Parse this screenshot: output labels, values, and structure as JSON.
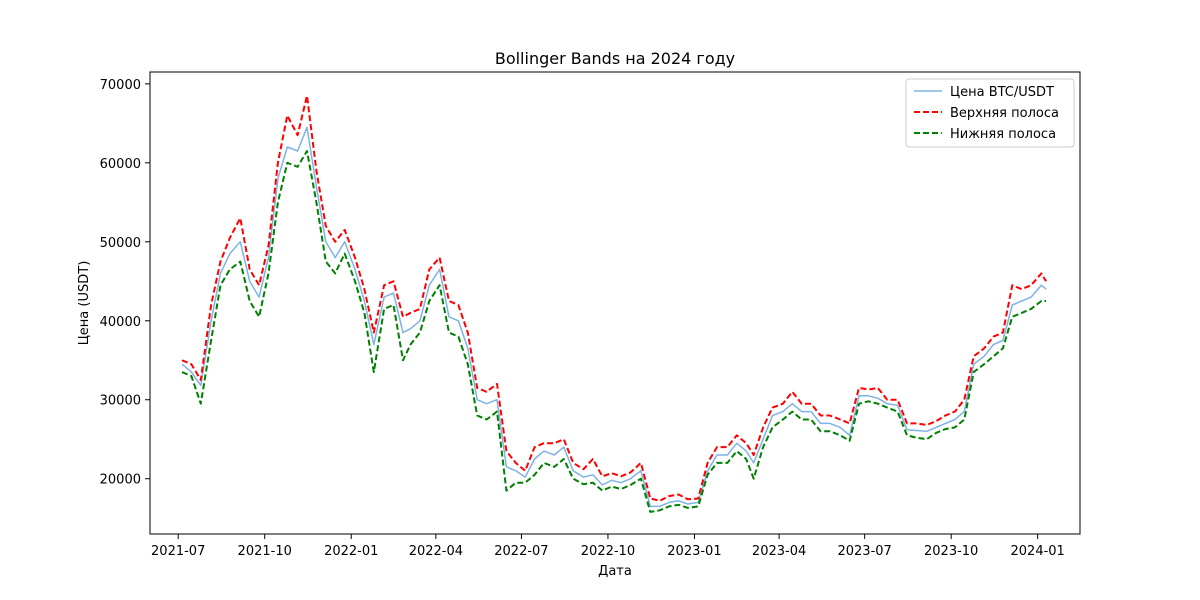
{
  "chart_data": {
    "type": "line",
    "title": "Bollinger Bands на 2024 году",
    "xlabel": "Дата",
    "ylabel": "Цена (USDT)",
    "x_ticks": [
      "2021-07-01",
      "2021-10-01",
      "2022-01-01",
      "2022-04-01",
      "2022-07-01",
      "2022-10-01",
      "2023-01-01",
      "2023-04-01",
      "2023-07-01",
      "2023-10-01",
      "2024-01-01"
    ],
    "x_tick_labels": [
      "2021-07",
      "2021-10",
      "2022-01",
      "2022-04",
      "2022-07",
      "2022-10",
      "2023-01",
      "2023-04",
      "2023-07",
      "2023-10",
      "2024-01"
    ],
    "xlim": [
      "2021-06-01",
      "2024-02-15"
    ],
    "y_ticks": [
      20000,
      30000,
      40000,
      50000,
      60000,
      70000
    ],
    "y_tick_labels": [
      "20000",
      "30000",
      "40000",
      "50000",
      "60000",
      "70000"
    ],
    "ylim": [
      13000,
      71500
    ],
    "grid": false,
    "legend_position": "top-right",
    "colors": {
      "price": "#7fb2e5",
      "upper": "#ff0000",
      "lower": "#008000"
    },
    "dates": [
      "2021-07-05",
      "2021-07-15",
      "2021-07-25",
      "2021-08-05",
      "2021-08-15",
      "2021-08-25",
      "2021-09-05",
      "2021-09-15",
      "2021-09-25",
      "2021-10-05",
      "2021-10-15",
      "2021-10-25",
      "2021-11-05",
      "2021-11-15",
      "2021-11-25",
      "2021-12-05",
      "2021-12-15",
      "2021-12-25",
      "2022-01-05",
      "2022-01-15",
      "2022-01-25",
      "2022-02-05",
      "2022-02-15",
      "2022-02-25",
      "2022-03-05",
      "2022-03-15",
      "2022-03-25",
      "2022-04-05",
      "2022-04-15",
      "2022-04-25",
      "2022-05-05",
      "2022-05-15",
      "2022-05-25",
      "2022-06-05",
      "2022-06-15",
      "2022-06-25",
      "2022-07-05",
      "2022-07-15",
      "2022-07-25",
      "2022-08-05",
      "2022-08-15",
      "2022-08-25",
      "2022-09-05",
      "2022-09-15",
      "2022-09-25",
      "2022-10-05",
      "2022-10-15",
      "2022-10-25",
      "2022-11-05",
      "2022-11-15",
      "2022-11-25",
      "2022-12-05",
      "2022-12-15",
      "2022-12-25",
      "2023-01-05",
      "2023-01-15",
      "2023-01-25",
      "2023-02-05",
      "2023-02-15",
      "2023-02-25",
      "2023-03-05",
      "2023-03-15",
      "2023-03-25",
      "2023-04-05",
      "2023-04-15",
      "2023-04-25",
      "2023-05-05",
      "2023-05-15",
      "2023-05-25",
      "2023-06-05",
      "2023-06-15",
      "2023-06-25",
      "2023-07-05",
      "2023-07-15",
      "2023-07-25",
      "2023-08-05",
      "2023-08-15",
      "2023-08-25",
      "2023-09-05",
      "2023-09-15",
      "2023-09-25",
      "2023-10-05",
      "2023-10-15",
      "2023-10-25",
      "2023-11-05",
      "2023-11-15",
      "2023-11-25",
      "2023-12-05",
      "2023-12-15",
      "2023-12-25",
      "2024-01-05",
      "2024-01-10"
    ],
    "series": [
      {
        "name": "Цена BTC/USDT",
        "style": "solid",
        "values": [
          34500,
          33500,
          31800,
          40000,
          46000,
          48500,
          50000,
          45000,
          43000,
          48000,
          58000,
          62000,
          61500,
          64500,
          57000,
          50000,
          48000,
          50000,
          46500,
          42500,
          37000,
          43000,
          43500,
          38500,
          39000,
          40000,
          44500,
          46500,
          40500,
          40000,
          36500,
          30000,
          29500,
          30000,
          21500,
          21000,
          20200,
          22500,
          23500,
          23000,
          24000,
          21000,
          20200,
          20500,
          19200,
          19800,
          19500,
          20000,
          21000,
          16500,
          16500,
          17000,
          17200,
          16800,
          17000,
          21000,
          23000,
          23000,
          24500,
          23500,
          22000,
          25000,
          28000,
          28500,
          29500,
          28500,
          28500,
          27000,
          27000,
          26500,
          25500,
          30500,
          30500,
          30200,
          29500,
          29300,
          26200,
          26100,
          26000,
          26500,
          27000,
          27500,
          28500,
          34500,
          35500,
          37000,
          37500,
          42000,
          42500,
          43000,
          44500,
          44000
        ]
      },
      {
        "name": "Верхняя полоса",
        "style": "dashed",
        "values": [
          35000,
          34500,
          32500,
          42000,
          47500,
          50500,
          53000,
          46500,
          44500,
          49500,
          60000,
          66000,
          63500,
          68500,
          59000,
          52000,
          50000,
          51500,
          48000,
          44000,
          38500,
          44500,
          45000,
          40500,
          41000,
          41500,
          46500,
          48000,
          42500,
          42000,
          38500,
          31500,
          31000,
          32000,
          23500,
          22000,
          21000,
          24000,
          24500,
          24500,
          25000,
          22000,
          21200,
          22500,
          20300,
          20700,
          20300,
          20800,
          22000,
          17500,
          17200,
          17800,
          18000,
          17400,
          17500,
          22000,
          24000,
          24000,
          25500,
          24500,
          23000,
          26500,
          29000,
          29500,
          31000,
          29500,
          29500,
          28000,
          28000,
          27500,
          27000,
          31500,
          31300,
          31500,
          30000,
          30000,
          27000,
          27000,
          26800,
          27300,
          28000,
          28500,
          30000,
          35500,
          36500,
          38000,
          38500,
          44500,
          44000,
          44500,
          46000,
          45000
        ]
      },
      {
        "name": "Нижняя полоса",
        "style": "dashed",
        "values": [
          33500,
          33000,
          29500,
          37500,
          44500,
          46500,
          47500,
          42500,
          40500,
          46000,
          55000,
          60000,
          59500,
          61500,
          55000,
          47500,
          46000,
          48500,
          45000,
          41000,
          33500,
          41500,
          42000,
          35000,
          37000,
          38500,
          42500,
          44500,
          38500,
          38000,
          34500,
          28000,
          27500,
          28500,
          18500,
          19500,
          19500,
          20500,
          22000,
          21500,
          22500,
          20000,
          19300,
          19500,
          18500,
          19000,
          18700,
          19200,
          20000,
          15800,
          16000,
          16500,
          16700,
          16300,
          16500,
          20500,
          22000,
          22000,
          23500,
          22500,
          20000,
          24000,
          26500,
          27500,
          28500,
          27500,
          27500,
          26000,
          26000,
          25500,
          24800,
          29500,
          29800,
          29500,
          29000,
          28500,
          25500,
          25200,
          25000,
          25800,
          26300,
          26500,
          27500,
          33500,
          34500,
          35500,
          36500,
          40500,
          41000,
          41500,
          42500,
          42500
        ]
      }
    ]
  }
}
